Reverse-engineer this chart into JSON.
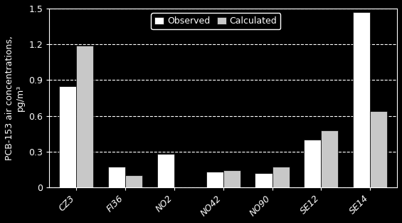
{
  "categories": [
    "CZ3",
    "FI36",
    "NO2",
    "NO42",
    "NO90",
    "SE12",
    "SE14"
  ],
  "observed": [
    0.85,
    0.17,
    0.28,
    0.13,
    0.12,
    0.4,
    1.47
  ],
  "calculated": [
    1.19,
    0.1,
    0.0,
    0.14,
    0.17,
    0.48,
    0.64
  ],
  "observed_color": "#ffffff",
  "calculated_color": "#c8c8c8",
  "bar_edge_color": "#000000",
  "background_color": "#000000",
  "plot_bg_color": "#000000",
  "text_color": "#ffffff",
  "ylabel_line1": "PCB-153 air concentrations,",
  "ylabel_line2": "pg/m³",
  "ylim": [
    0,
    1.5
  ],
  "yticks": [
    0,
    0.3,
    0.6,
    0.9,
    1.2,
    1.5
  ],
  "legend_observed": "Observed",
  "legend_calculated": "Calculated",
  "grid_color": "#ffffff",
  "grid_style": "--",
  "bar_width": 0.35,
  "label_fontsize": 9,
  "tick_fontsize": 9,
  "legend_fontsize": 9
}
